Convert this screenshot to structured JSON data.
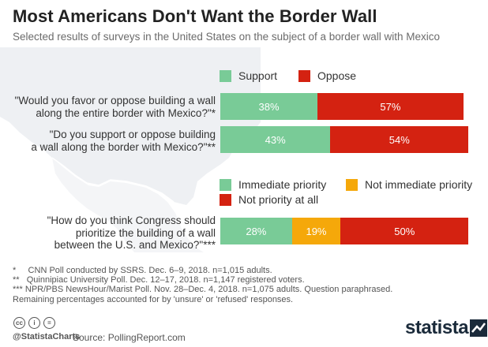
{
  "title": "Most Americans Don't Want the Border Wall",
  "subtitle": "Selected results of surveys in the United States on the subject of a border wall with Mexico",
  "colors": {
    "support": "#79cb97",
    "oppose": "#d42211",
    "immediate": "#79cb97",
    "not_immediate": "#f5a80a",
    "not_priority": "#d42211"
  },
  "legend1": {
    "support": "Support",
    "oppose": "Oppose"
  },
  "legend2": {
    "immediate": "Immediate priority",
    "not_immediate": "Not immediate priority",
    "not_priority": "Not priority at all"
  },
  "questions": {
    "q1": [
      "\"Would you favor or oppose building a wall",
      "along the entire border with Mexico?\"*"
    ],
    "q2": [
      "\"Do you support or oppose building",
      "a wall along the border with Mexico?\"**"
    ],
    "q3": [
      "\"How do you think Congress should",
      "prioritize the building of a wall",
      "between the U.S. and Mexico?\"***"
    ]
  },
  "chart_data": [
    {
      "type": "bar",
      "stacked": true,
      "orientation": "horizontal",
      "categories": [
        "\"Would you favor or oppose building a wall along the entire border with Mexico?\"*",
        "\"Do you support or oppose building a wall along the border with Mexico?\"**"
      ],
      "series": [
        {
          "name": "Support",
          "values": [
            38,
            43
          ],
          "labels": [
            "38%",
            "43%"
          ]
        },
        {
          "name": "Oppose",
          "values": [
            57,
            54
          ],
          "labels": [
            "57%",
            "54%"
          ]
        }
      ]
    },
    {
      "type": "bar",
      "stacked": true,
      "orientation": "horizontal",
      "categories": [
        "\"How do you think Congress should prioritize the building of a wall between the U.S. and Mexico?\"***"
      ],
      "series": [
        {
          "name": "Immediate priority",
          "values": [
            28
          ],
          "labels": [
            "28%"
          ]
        },
        {
          "name": "Not immediate priority",
          "values": [
            19
          ],
          "labels": [
            "19%"
          ]
        },
        {
          "name": "Not priority at all",
          "values": [
            50
          ],
          "labels": [
            "50%"
          ]
        }
      ]
    }
  ],
  "footnotes": [
    "*     CNN Poll conducted by SSRS. Dec. 6–9, 2018. n=1,015 adults.",
    "**   Quinnipiac University Poll. Dec. 12–17, 2018. n=1,147 registered voters.",
    "*** NPR/PBS NewsHour/Marist Poll. Nov. 28–Dec. 4, 2018. n=1,075 adults. Question paraphrased.",
    "Remaining percentages accounted for by 'unsure' or 'refused' responses."
  ],
  "footer": {
    "handle": "@StatistaCharts",
    "source": "Source: PollingReport.com",
    "logo": "statista",
    "cc_icons": [
      "cc",
      "i",
      "="
    ]
  }
}
